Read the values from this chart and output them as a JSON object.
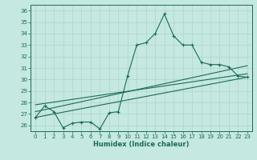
{
  "xlabel": "Humidex (Indice chaleur)",
  "background_color": "#c5e8e0",
  "line_color": "#1a6b5a",
  "grid_color": "#aed4cc",
  "xlim": [
    -0.5,
    23.5
  ],
  "ylim": [
    25.5,
    36.5
  ],
  "yticks": [
    26,
    27,
    28,
    29,
    30,
    31,
    32,
    33,
    34,
    35,
    36
  ],
  "xticks": [
    0,
    1,
    2,
    3,
    4,
    5,
    6,
    7,
    8,
    9,
    10,
    11,
    12,
    13,
    14,
    15,
    16,
    17,
    18,
    19,
    20,
    21,
    22,
    23
  ],
  "series1_x": [
    0,
    1,
    2,
    3,
    4,
    5,
    6,
    7,
    8,
    9,
    10,
    11,
    12,
    13,
    14,
    15,
    16,
    17,
    18,
    19,
    20,
    21,
    22,
    23
  ],
  "series1_y": [
    26.7,
    27.7,
    27.2,
    25.8,
    26.2,
    26.3,
    26.3,
    25.7,
    27.1,
    27.2,
    30.3,
    33.0,
    33.2,
    34.0,
    35.7,
    33.8,
    33.0,
    33.0,
    31.5,
    31.3,
    31.3,
    31.1,
    30.3,
    30.2
  ],
  "series2_x": [
    0,
    23
  ],
  "series2_y": [
    27.2,
    31.2
  ],
  "series3_x": [
    0,
    23
  ],
  "series3_y": [
    26.7,
    30.2
  ],
  "series4_x": [
    0,
    23
  ],
  "series4_y": [
    27.8,
    30.5
  ]
}
